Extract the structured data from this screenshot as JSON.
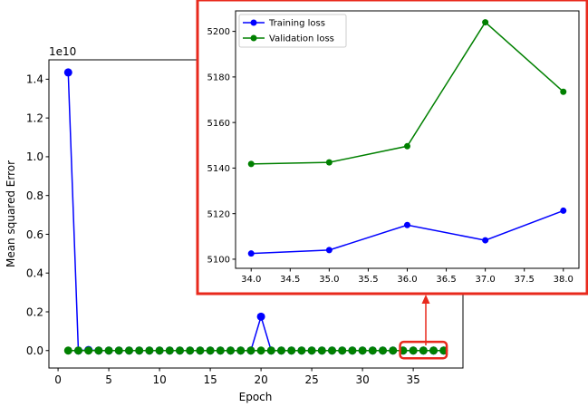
{
  "chart_data": [
    {
      "type": "line",
      "role": "main",
      "xlabel": "Epoch",
      "ylabel": "Mean squared Error",
      "y_offset_label": "1e10",
      "xlim": [
        -0.9,
        39.9
      ],
      "ylim": [
        -0.09,
        1.5
      ],
      "x_ticks": [
        0,
        5,
        10,
        15,
        20,
        25,
        30,
        35
      ],
      "x_tick_labels": [
        "0",
        "5",
        "10",
        "15",
        "20",
        "25",
        "30",
        "35"
      ],
      "y_ticks": [
        0.0,
        0.2,
        0.4,
        0.6,
        0.8,
        1.0,
        1.2,
        1.4
      ],
      "y_tick_labels": [
        "0.0",
        "0.2",
        "0.4",
        "0.6",
        "0.8",
        "1.0",
        "1.2",
        "1.4"
      ],
      "x": [
        1,
        2,
        3,
        4,
        5,
        6,
        7,
        8,
        9,
        10,
        11,
        12,
        13,
        14,
        15,
        16,
        17,
        18,
        19,
        20,
        21,
        22,
        23,
        24,
        25,
        26,
        27,
        28,
        29,
        30,
        31,
        32,
        33,
        34,
        35,
        36,
        37,
        38
      ],
      "series": [
        {
          "color": "#0000ff",
          "values": [
            1.435,
            0.0,
            0.003,
            0.0,
            0.0,
            0.0,
            0.0,
            0.0,
            0.0,
            0.0,
            0.0,
            0.0,
            0.0,
            0.0,
            0.0,
            0.0,
            0.0,
            0.0,
            0.0,
            0.175,
            0.0,
            0.0,
            0.0,
            0.0,
            0.0,
            0.0,
            0.0,
            0.0,
            0.0,
            0.0,
            0.0,
            0.0,
            0.0,
            0.0,
            0.0,
            0.0,
            0.0,
            0.0
          ]
        },
        {
          "color": "#008000",
          "values": [
            0,
            0,
            0,
            0,
            0,
            0,
            0,
            0,
            0,
            0,
            0,
            0,
            0,
            0,
            0,
            0,
            0,
            0,
            0,
            0,
            0,
            0,
            0,
            0,
            0,
            0,
            0,
            0,
            0,
            0,
            0,
            0,
            0,
            0,
            0,
            0,
            0,
            0
          ]
        }
      ],
      "grid": false,
      "highlight_range": {
        "x": [
          33.7,
          38.3
        ],
        "y": [
          -0.04,
          0.045
        ],
        "color": "#e8291c"
      }
    },
    {
      "type": "line",
      "role": "inset",
      "xlim": [
        33.8,
        38.2
      ],
      "ylim": [
        5096,
        5209
      ],
      "x": [
        34,
        35,
        36,
        37,
        38
      ],
      "x_ticks": [
        34.0,
        34.5,
        35.0,
        35.5,
        36.0,
        36.5,
        37.0,
        37.5,
        38.0
      ],
      "x_tick_labels": [
        "34.0",
        "34.5",
        "35.0",
        "35.5",
        "36.0",
        "36.5",
        "37.0",
        "37.5",
        "38.0"
      ],
      "y_ticks": [
        5100,
        5120,
        5140,
        5160,
        5180,
        5200
      ],
      "y_tick_labels": [
        "5100",
        "5120",
        "5140",
        "5160",
        "5180",
        "5200"
      ],
      "series": [
        {
          "name": "Training loss",
          "color": "#0000ff",
          "values": [
            5102.5,
            5104.0,
            5115.0,
            5108.3,
            5121.3
          ]
        },
        {
          "name": "Validation loss",
          "color": "#008000",
          "values": [
            5141.8,
            5142.5,
            5149.6,
            5204.0,
            5173.5
          ]
        }
      ],
      "legend_position": "top-left",
      "grid": false,
      "border_color": "#e8291c"
    }
  ]
}
